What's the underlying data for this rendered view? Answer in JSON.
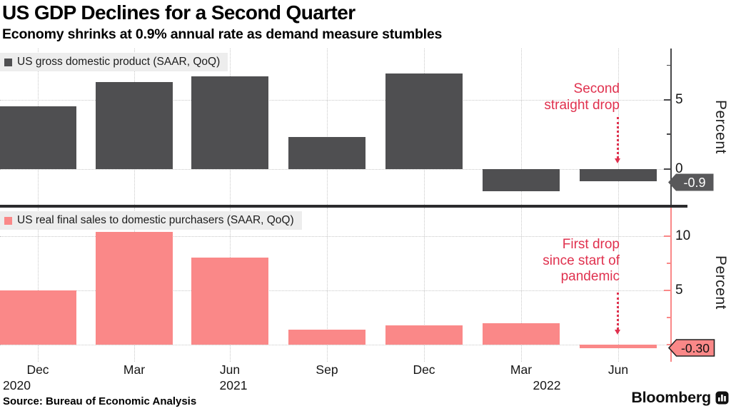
{
  "header": {
    "title": "US GDP Declines for a Second Quarter",
    "subtitle": "Economy shrinks at 0.9% annual rate as demand measure stumbles"
  },
  "footer": {
    "source": "Source: Bureau of Economic Analysis",
    "brand": "Bloomberg",
    "brand_icon": "bloomberg-chart-icon"
  },
  "colors": {
    "gdp_bar": "#4f4f51",
    "sales_bar": "#fa8888",
    "annotation_red": "#e0314e",
    "grid": "#c8c8c8",
    "legend_bg": "#ededed",
    "divider": "#2b2b2d",
    "axis_top": "#48484a",
    "axis_bottom": "#fa8888",
    "tag_top_bg": "#58585a",
    "tag_top_text": "#ffffff",
    "tag_bottom_bg": "#fa8888",
    "tag_bottom_border": "#222222",
    "tag_bottom_text": "#111111"
  },
  "x_axis": {
    "tick_labels": [
      "Dec",
      "Mar",
      "Jun",
      "Sep",
      "Dec",
      "Mar",
      "Jun"
    ],
    "year_labels": [
      "2020",
      "2021",
      "2022"
    ]
  },
  "chart_data": [
    {
      "type": "bar",
      "panel": "top",
      "legend": "US gross domestic product (SAAR, QoQ)",
      "ylabel": "Percent",
      "ylim": [
        -2.6,
        8.7
      ],
      "yticks_labeled": [
        0,
        5
      ],
      "yticks_minor": [
        2.5,
        7.5
      ],
      "gridlines_h": [
        0,
        5
      ],
      "grid": true,
      "legend_position": "top-left",
      "categories": [
        "Dec 2020",
        "Mar 2021",
        "Jun 2021",
        "Sep 2021",
        "Dec 2021",
        "Mar 2022",
        "Jun 2022"
      ],
      "values": [
        4.5,
        6.3,
        6.7,
        2.3,
        6.9,
        -1.6,
        -0.9
      ],
      "last_value_tag": "-0.9",
      "annotation": [
        "Second",
        "straight drop"
      ]
    },
    {
      "type": "bar",
      "panel": "bottom",
      "legend": "US real final sales to domestic purchasers (SAAR, QoQ)",
      "ylabel": "Percent",
      "ylim": [
        -1.3,
        12.6
      ],
      "yticks_labeled": [
        5,
        10
      ],
      "yticks_minor": [
        0,
        2.5,
        7.5
      ],
      "gridlines_h": [
        0,
        5,
        10
      ],
      "grid": true,
      "legend_position": "top-left",
      "categories": [
        "Dec 2020",
        "Mar 2021",
        "Jun 2021",
        "Sep 2021",
        "Dec 2021",
        "Mar 2022",
        "Jun 2022"
      ],
      "values": [
        5.0,
        10.4,
        8.0,
        1.4,
        1.8,
        2.0,
        -0.3
      ],
      "last_value_tag": "-0.30",
      "annotation": [
        "First drop",
        "since start of",
        "pandemic"
      ]
    }
  ]
}
